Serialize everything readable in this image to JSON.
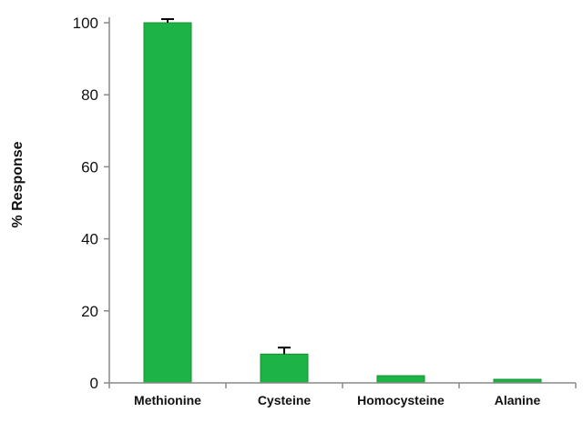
{
  "chart_data": {
    "type": "bar",
    "title": "",
    "xlabel": "",
    "ylabel": "% Response",
    "categories": [
      "Methionine",
      "Cysteine",
      "Homocysteine",
      "Alanine"
    ],
    "values": [
      100,
      8,
      2,
      1
    ],
    "error_bars": [
      1,
      1.8,
      0,
      0
    ],
    "ylim": [
      0,
      100
    ],
    "yticks": [
      0,
      20,
      40,
      60,
      80,
      100
    ],
    "grid": false,
    "legend": "none",
    "bar_color": "#1db346",
    "bar_edge_color": "#139033",
    "axis_color": "#888888"
  }
}
